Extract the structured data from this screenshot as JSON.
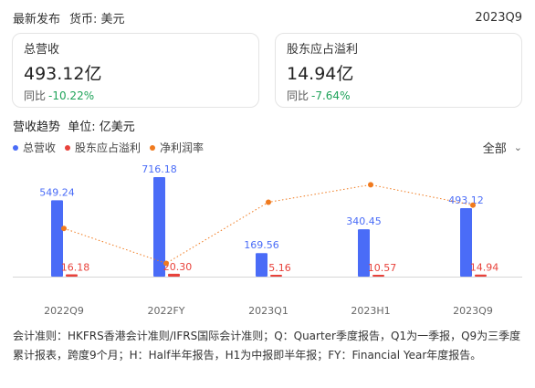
{
  "header": {
    "title": "最新发布",
    "currency": "货币: 美元",
    "period": "2023Q9"
  },
  "cards": [
    {
      "label": "总营收",
      "value": "493.12亿",
      "yoy_label": "同比",
      "yoy_value": "-10.22%"
    },
    {
      "label": "股东应占溢利",
      "value": "14.94亿",
      "yoy_label": "同比",
      "yoy_value": "-7.64%"
    }
  ],
  "section": {
    "title": "营收趋势",
    "unit": "单位: 亿美元"
  },
  "legend": [
    {
      "label": "总营收",
      "color": "#4a6cf7"
    },
    {
      "label": "股东应占溢利",
      "color": "#e8423b"
    },
    {
      "label": "净利润率",
      "color": "#f07a1e"
    }
  ],
  "filter": {
    "label": "全部",
    "icon": "chevron-down-icon"
  },
  "chart_data": {
    "type": "bar",
    "categories": [
      "2022Q9",
      "2022FY",
      "2023Q1",
      "2023H1",
      "2023Q9"
    ],
    "series": [
      {
        "name": "总营收",
        "values": [
          549.24,
          716.18,
          169.56,
          340.45,
          493.12
        ],
        "labels": [
          "549.24",
          "716.18",
          "169.56",
          "340.45",
          "493.12"
        ],
        "color": "#4a6cf7"
      },
      {
        "name": "股东应占溢利",
        "values": [
          16.18,
          20.3,
          5.16,
          10.57,
          14.94
        ],
        "labels": [
          "16.18",
          "20.30",
          "5.16",
          "10.57",
          "14.94"
        ],
        "color": "#e8423b"
      },
      {
        "name": "净利润率",
        "values": [
          2.95,
          2.83,
          3.04,
          3.1,
          3.03
        ],
        "color": "#f07a1e",
        "style": "dotted-line"
      }
    ]
  },
  "footnote": "会计准则：HKFRS香港会计准则/IFRS国际会计准则；Q：Quarter季度报告，Q1为一季报，Q9为三季度累计报表，跨度9个月；H：Half半年报告，H1为中报即半年报；FY：Financial Year年度报告。"
}
